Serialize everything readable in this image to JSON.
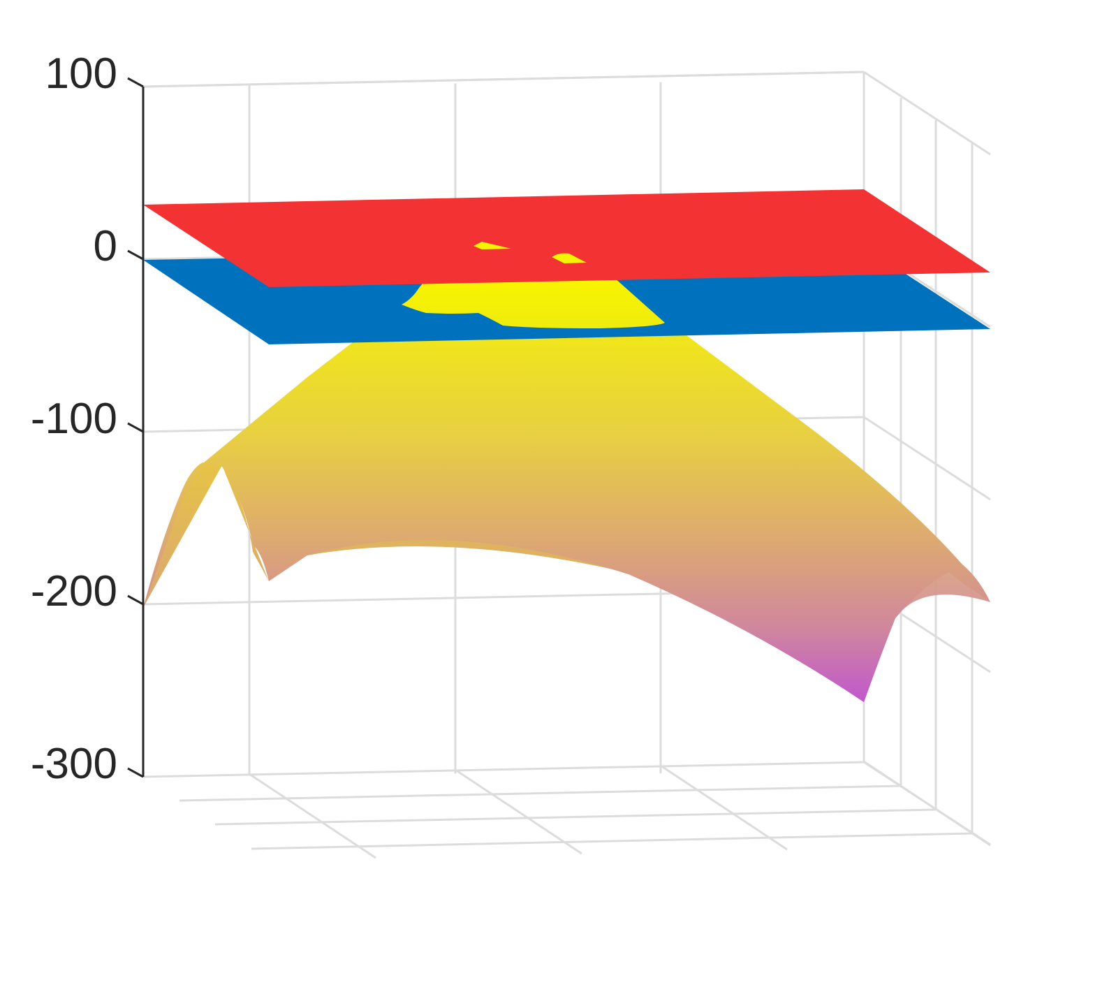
{
  "chart_data": {
    "type": "surface3d",
    "title": "",
    "xlabel": "",
    "ylabel": "",
    "zlabel": "",
    "zlim": [
      -300,
      100
    ],
    "z_ticks": [
      100,
      0,
      -100,
      -200,
      -300
    ],
    "z_tick_labels": [
      "100",
      "0",
      "-100",
      "-200",
      "-300"
    ],
    "grid": true,
    "series": [
      {
        "kind": "plane",
        "z": 20,
        "color": "#F23233"
      },
      {
        "kind": "plane",
        "z": -20,
        "color": "#0072BD"
      },
      {
        "kind": "surface",
        "z_range": [
          -265,
          15
        ],
        "colormap": [
          "#BF55D0",
          "#D49A8F",
          "#E8D040",
          "#F5F500"
        ],
        "corner_z": {
          "back_left": -200,
          "front_left": -190,
          "back_right": -200,
          "front_right": -265
        }
      }
    ]
  }
}
